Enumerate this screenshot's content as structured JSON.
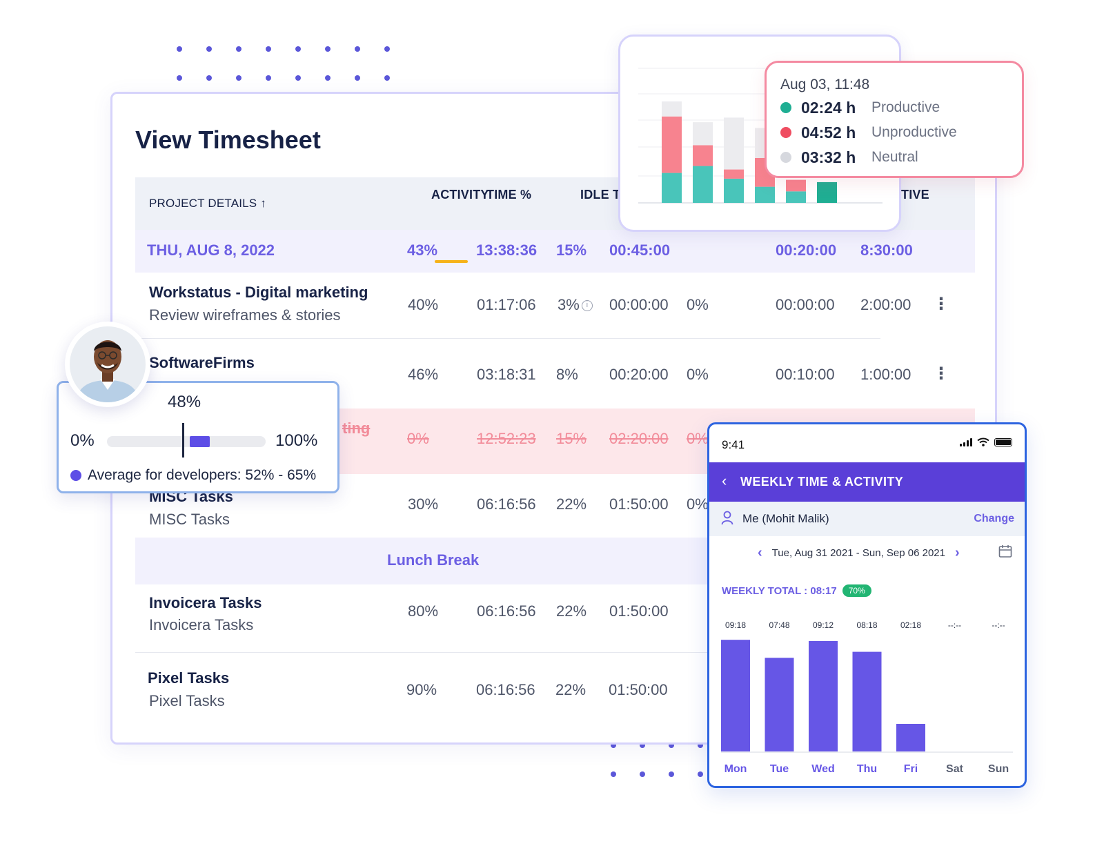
{
  "sheet": {
    "title": "View Timesheet",
    "headers": {
      "project_details": "PROJECT DETAILS ↑",
      "activity": "ACTIVITY",
      "time_pct": "TIME %",
      "idle": "IDLE T",
      "tive": "TIVE"
    },
    "date_row": {
      "date": "THU, AUG 8, 2022",
      "activity": "43%",
      "time": "13:38:36",
      "idle_pct": "15%",
      "idle_time": "00:45:00",
      "col7": "00:20:00",
      "col8": "8:30:00"
    },
    "rows": [
      {
        "name": "Workstatus - Digital marketing",
        "sub": "Review wireframes & stories",
        "activity": "40%",
        "time": "01:17:06",
        "idle_pct": "3%",
        "idle_time": "00:00:00",
        "pct2": "0%",
        "col7": "00:00:00",
        "col8": "2:00:00",
        "info_icon": "info-icon"
      },
      {
        "name": "SoftwareFirms",
        "sub": "",
        "activity": "46%",
        "time": "03:18:31",
        "idle_pct": "8%",
        "idle_time": "00:20:00",
        "pct2": "0%",
        "col7": "00:10:00",
        "col8": "1:00:00"
      },
      {
        "name": "ting",
        "sub": "",
        "activity": "0%",
        "time": "12:52:23",
        "idle_pct": "15%",
        "idle_time": "02:20:00",
        "pct2": "0%"
      },
      {
        "name": "MISC Tasks",
        "sub": "MISC Tasks",
        "activity": "30%",
        "time": "06:16:56",
        "idle_pct": "22%",
        "idle_time": "01:50:00",
        "pct2": "0%"
      },
      {
        "name": "Invoicera Tasks",
        "sub": "Invoicera Tasks",
        "activity": "80%",
        "time": "06:16:56",
        "idle_pct": "22%",
        "idle_time": "01:50:00"
      },
      {
        "name": "Pixel Tasks",
        "sub": "Pixel Tasks",
        "activity": "90%",
        "time": "06:16:56",
        "idle_pct": "22%",
        "idle_time": "01:50:00"
      }
    ],
    "lunch": "Lunch Break",
    "kebab": "⋮"
  },
  "tooltip": {
    "when": "Aug 03, 11:48",
    "items": [
      {
        "value": "02:24 h",
        "label": "Productive",
        "color": "#1fae93"
      },
      {
        "value": "04:52 h",
        "label": "Unproductive",
        "color": "#ef4d61"
      },
      {
        "value": "03:32 h",
        "label": "Neutral",
        "color": "#d6d8de"
      }
    ]
  },
  "chart_data": [
    {
      "type": "bar",
      "stacked": true,
      "categories": [
        "",
        "",
        "",
        "",
        "",
        ""
      ],
      "series": [
        {
          "name": "Productive",
          "color": "#49c5ba",
          "values": [
            26,
            32,
            21,
            14,
            10,
            18
          ]
        },
        {
          "name": "Unproductive",
          "color": "#f7838f",
          "values": [
            49,
            18,
            8,
            25,
            10,
            0
          ]
        },
        {
          "name": "Neutral",
          "color": "#ececef",
          "values": [
            13,
            20,
            45,
            26,
            0,
            0
          ]
        }
      ],
      "grid": true
    },
    {
      "type": "bar",
      "categories": [
        "Mon",
        "Tue",
        "Wed",
        "Thu",
        "Fri",
        "Sat",
        "Sun"
      ],
      "values": [
        9.3,
        7.8,
        9.2,
        8.3,
        2.3,
        0,
        0
      ],
      "data_labels": [
        "09:18",
        "07:48",
        "09:12",
        "08:18",
        "02:18",
        "--:--",
        "--:--"
      ],
      "color": "#6656e6",
      "ylim": [
        0,
        10
      ]
    }
  ],
  "score": {
    "value": "48%",
    "min": "0%",
    "max": "100%",
    "average_text": "Average for developers: 52% - 65%",
    "current_fraction": 0.48,
    "avg_low": 0.52,
    "avg_high": 0.65
  },
  "phone": {
    "time": "9:41",
    "back": "‹",
    "title": "WEEKLY TIME & ACTIVITY",
    "user": "Me (Mohit Malik)",
    "change": "Change",
    "range": "Tue, Aug 31 2021 - Sun, Sep 06 2021",
    "prev": "‹",
    "next": "›",
    "total_label": "WEEKLY TOTAL : 08:17",
    "total_badge": "70%"
  }
}
